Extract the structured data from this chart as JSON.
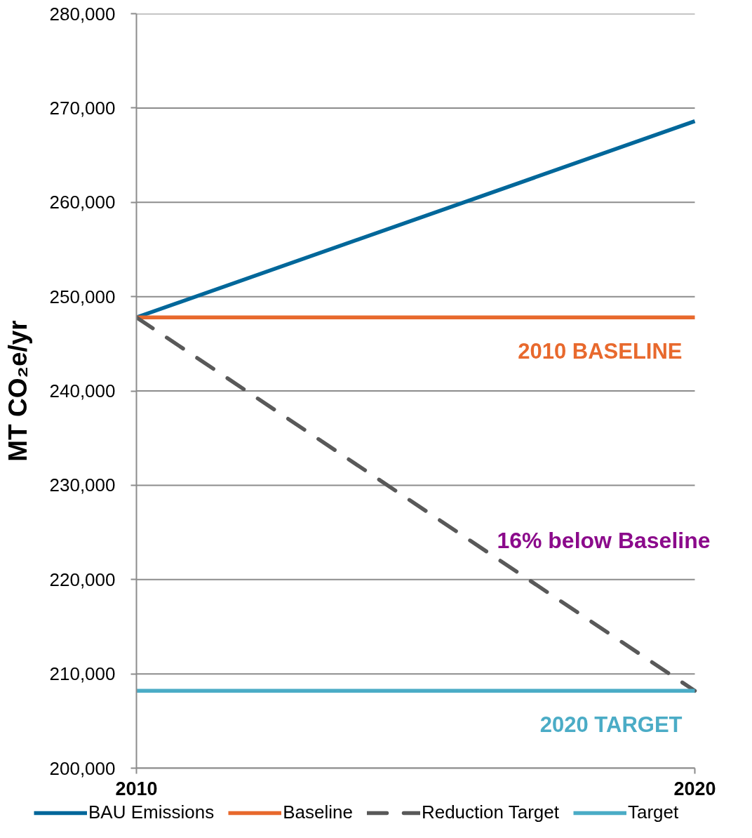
{
  "chart_data": {
    "type": "line",
    "x": [
      2010,
      2020
    ],
    "xlim": [
      2010,
      2020
    ],
    "xticks": [
      2010,
      2020
    ],
    "ylim": [
      200000,
      280000
    ],
    "yticks": [
      {
        "value": 200000,
        "label": "200,000"
      },
      {
        "value": 210000,
        "label": "210,000"
      },
      {
        "value": 220000,
        "label": "220,000"
      },
      {
        "value": 230000,
        "label": "230,000"
      },
      {
        "value": 240000,
        "label": "240,000"
      },
      {
        "value": 250000,
        "label": "250,000"
      },
      {
        "value": 260000,
        "label": "260,000"
      },
      {
        "value": 270000,
        "label": "270,000"
      },
      {
        "value": 280000,
        "label": "280,000"
      }
    ],
    "ylabel": "MT CO₂e/yr",
    "grid": "y",
    "legend": "bottom",
    "series": [
      {
        "name": "BAU Emissions",
        "color": "#00679a",
        "values": [
          247800,
          268600
        ]
      },
      {
        "name": "Baseline",
        "color": "#e8692d",
        "values": [
          247800,
          247800
        ]
      },
      {
        "name": "Reduction Target",
        "color": "#595959",
        "values": [
          247800,
          208200
        ],
        "line_style": "dashed"
      },
      {
        "name": "Target",
        "color": "#4bacc6",
        "values": [
          208200,
          208200
        ]
      }
    ],
    "annotations": [
      {
        "text": "2010 BASELINE",
        "x": 2020,
        "y": 247800
      },
      "16% below Baseline",
      {
        "text": "2020 TARGET",
        "x": 2020,
        "y": 208200
      }
    ]
  }
}
